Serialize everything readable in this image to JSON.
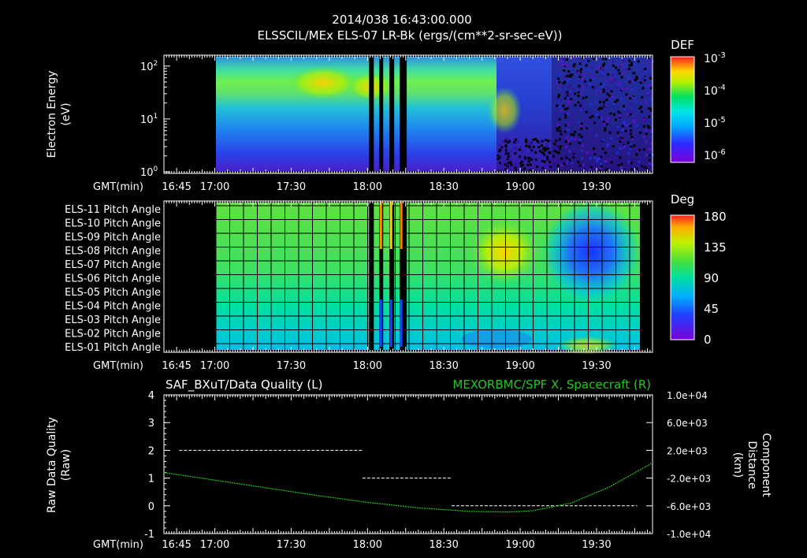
{
  "header": {
    "line1": "2014/038 16:43:00.000",
    "line2": "ELSSCIL/MEx ELS-07 LR-Bk   (ergs/(cm**2-sr-sec-eV))"
  },
  "time_axis": {
    "prefix": "GMT(min)",
    "start_min": 1000,
    "end_min": 1192,
    "ticks": [
      {
        "min": 1005,
        "label": "16:45"
      },
      {
        "min": 1020,
        "label": "17:00"
      },
      {
        "min": 1050,
        "label": "17:30"
      },
      {
        "min": 1080,
        "label": "18:00"
      },
      {
        "min": 1110,
        "label": "18:30"
      },
      {
        "min": 1140,
        "label": "19:00"
      },
      {
        "min": 1170,
        "label": "19:30"
      }
    ]
  },
  "chart_data": [
    {
      "type": "heatmap",
      "panel": "spectrogram",
      "ylabel": "Electron Energy\n(eV)",
      "y_scale": "log",
      "ylim": [
        1,
        150
      ],
      "y_ticks": [
        {
          "base": "10",
          "exp": "0",
          "value": 1
        },
        {
          "base": "10",
          "exp": "1",
          "value": 10
        },
        {
          "base": "10",
          "exp": "2",
          "value": 100
        }
      ],
      "colorbar": {
        "title": "DEF",
        "scale": "log",
        "range": [
          1e-06,
          0.001
        ],
        "ticks": [
          {
            "base": "10",
            "exp": "-3"
          },
          {
            "base": "10",
            "exp": "-4"
          },
          {
            "base": "10",
            "exp": "-5"
          },
          {
            "base": "10",
            "exp": "-6"
          }
        ]
      },
      "data_start": "17:00",
      "data_end": "19:45",
      "gaps": [
        "18:00",
        "18:04",
        "18:08",
        "18:12"
      ],
      "features": [
        {
          "time_range": [
            "17:00",
            "17:30"
          ],
          "energy_eV": [
            30,
            80
          ],
          "level": "1e-4"
        },
        {
          "time_range": [
            "17:30",
            "17:45"
          ],
          "energy_eV": [
            20,
            100
          ],
          "level": "3e-4"
        },
        {
          "time_range": [
            "17:45",
            "18:30"
          ],
          "energy_eV": [
            20,
            50
          ],
          "level": "1e-4"
        },
        {
          "time_range": [
            "18:45",
            "19:00"
          ],
          "energy_eV": [
            5,
            30
          ],
          "level": "1e-4"
        },
        {
          "time_range": [
            "19:00",
            "19:45"
          ],
          "energy_eV": [
            1,
            150
          ],
          "level": "1e-6"
        }
      ]
    },
    {
      "type": "heatmap",
      "panel": "pitch_angle",
      "rows": [
        "ELS-11 Pitch Angle",
        "ELS-10 Pitch Angle",
        "ELS-09 Pitch Angle",
        "ELS-08 Pitch Angle",
        "ELS-07 Pitch Angle",
        "ELS-06 Pitch Angle",
        "ELS-05 Pitch Angle",
        "ELS-04 Pitch Angle",
        "ELS-03 Pitch Angle",
        "ELS-02 Pitch Angle",
        "ELS-01 Pitch Angle"
      ],
      "colorbar": {
        "title": "Deg",
        "range": [
          0,
          180
        ],
        "ticks": [
          "180",
          "135",
          "90",
          "45",
          "0"
        ]
      },
      "data_start": "17:00",
      "data_end": "19:45",
      "grid": true,
      "features": [
        {
          "rows": "all",
          "time_range": [
            "17:00",
            "18:40"
          ],
          "deg_range": [
            60,
            100
          ],
          "description_level": "upper rows ~100, lower rows ~60"
        },
        {
          "rows": [
            "ELS-09",
            "ELS-07"
          ],
          "time_range": [
            "18:40",
            "19:00"
          ],
          "deg": 125
        },
        {
          "rows": [
            "ELS-10",
            "ELS-05"
          ],
          "time_range": [
            "19:10",
            "19:35"
          ],
          "deg": 20
        },
        {
          "rows": [
            "ELS-02",
            "ELS-01"
          ],
          "time_range": [
            "19:10",
            "19:30"
          ],
          "deg": 100
        }
      ]
    },
    {
      "type": "line",
      "panel": "data_quality",
      "title_left": "SAF_BXuT/Data Quality (L)",
      "title_right": "MEXORBMC/SPF X, Spacecraft (R)",
      "ylabel_left": "Raw Data Quality\n(Raw)",
      "ylabel_right": "Component\nDistance\n(km)",
      "ylim_left": [
        -1,
        4
      ],
      "left_ticks": [
        "-1",
        "0",
        "1",
        "2",
        "3",
        "4"
      ],
      "ylim_right": [
        -10000,
        10000
      ],
      "right_ticks": [
        "1.0e+04",
        "6.0e+03",
        "2.0e+03",
        "-2.0e+03",
        "-6.0e+03",
        "-1.0e+04"
      ],
      "series": [
        {
          "name": "SAF_BXuT/Data Quality",
          "axis": "left",
          "color": "#ffffff",
          "style": "dashed",
          "segments": [
            {
              "t": [
                1006,
                1078
              ],
              "y": 2
            },
            {
              "t": [
                1078,
                1113
              ],
              "y": 1
            },
            {
              "t": [
                1113,
                1186
              ],
              "y": 0
            }
          ]
        },
        {
          "name": "MEXORBMC/SPF X, Spacecraft",
          "axis": "right",
          "color": "#22c822",
          "style": "dotted",
          "t": [
            1000,
            1020,
            1040,
            1060,
            1080,
            1100,
            1120,
            1135,
            1145,
            1160,
            1175,
            1192
          ],
          "y": [
            -1200,
            -2300,
            -3400,
            -4500,
            -5500,
            -6300,
            -6800,
            -6900,
            -6700,
            -5600,
            -3300,
            200
          ]
        }
      ]
    }
  ]
}
